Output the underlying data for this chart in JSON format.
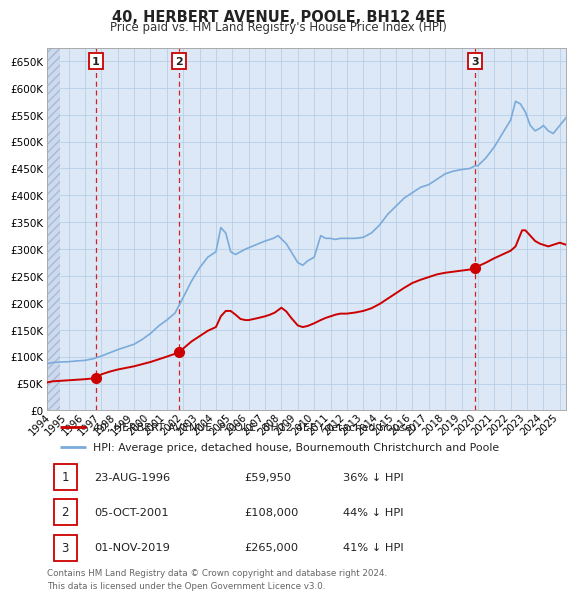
{
  "title": "40, HERBERT AVENUE, POOLE, BH12 4EE",
  "subtitle": "Price paid vs. HM Land Registry's House Price Index (HPI)",
  "yticks": [
    0,
    50000,
    100000,
    150000,
    200000,
    250000,
    300000,
    350000,
    400000,
    450000,
    500000,
    550000,
    600000,
    650000
  ],
  "xlim_start": 1993.7,
  "xlim_end": 2025.4,
  "transactions": [
    {
      "date": 1996.646,
      "price": 59950,
      "label": "1"
    },
    {
      "date": 2001.755,
      "price": 108000,
      "label": "2"
    },
    {
      "date": 2019.836,
      "price": 265000,
      "label": "3"
    }
  ],
  "transaction_details": [
    {
      "num": "1",
      "date_str": "23-AUG-1996",
      "price_str": "£59,950",
      "hpi_str": "36% ↓ HPI"
    },
    {
      "num": "2",
      "date_str": "05-OCT-2001",
      "price_str": "£108,000",
      "hpi_str": "44% ↓ HPI"
    },
    {
      "num": "3",
      "date_str": "01-NOV-2019",
      "price_str": "£265,000",
      "hpi_str": "41% ↓ HPI"
    }
  ],
  "legend_line1": "40, HERBERT AVENUE, POOLE, BH12 4EE (detached house)",
  "legend_line2": "HPI: Average price, detached house, Bournemouth Christchurch and Poole",
  "footer": "Contains HM Land Registry data © Crown copyright and database right 2024.\nThis data is licensed under the Open Government Licence v3.0.",
  "line_color": "#cc0000",
  "hpi_color": "#7aabdb",
  "background_color": "#ffffff",
  "plot_bg_color": "#dce8f5",
  "hatch_region_end": 1994.5,
  "grid_color": "#b8cfe8",
  "vline_color": "#cc0000",
  "hpi_points": [
    [
      1993.7,
      87000
    ],
    [
      1994.0,
      89000
    ],
    [
      1994.5,
      90000
    ],
    [
      1995.0,
      90500
    ],
    [
      1995.5,
      92000
    ],
    [
      1996.0,
      93000
    ],
    [
      1996.5,
      96000
    ],
    [
      1997.0,
      101000
    ],
    [
      1997.5,
      107000
    ],
    [
      1998.0,
      113000
    ],
    [
      1998.5,
      118000
    ],
    [
      1999.0,
      123000
    ],
    [
      1999.5,
      132000
    ],
    [
      2000.0,
      143000
    ],
    [
      2000.5,
      157000
    ],
    [
      2001.0,
      168000
    ],
    [
      2001.5,
      181000
    ],
    [
      2002.0,
      210000
    ],
    [
      2002.5,
      240000
    ],
    [
      2003.0,
      265000
    ],
    [
      2003.5,
      285000
    ],
    [
      2004.0,
      295000
    ],
    [
      2004.3,
      340000
    ],
    [
      2004.6,
      330000
    ],
    [
      2004.9,
      295000
    ],
    [
      2005.2,
      290000
    ],
    [
      2005.5,
      295000
    ],
    [
      2005.8,
      300000
    ],
    [
      2006.2,
      305000
    ],
    [
      2006.6,
      310000
    ],
    [
      2007.0,
      315000
    ],
    [
      2007.5,
      320000
    ],
    [
      2007.8,
      325000
    ],
    [
      2008.3,
      310000
    ],
    [
      2008.7,
      290000
    ],
    [
      2009.0,
      275000
    ],
    [
      2009.3,
      270000
    ],
    [
      2009.6,
      278000
    ],
    [
      2010.0,
      285000
    ],
    [
      2010.4,
      325000
    ],
    [
      2010.7,
      320000
    ],
    [
      2011.0,
      320000
    ],
    [
      2011.3,
      318000
    ],
    [
      2011.6,
      320000
    ],
    [
      2012.0,
      320000
    ],
    [
      2012.5,
      320000
    ],
    [
      2013.0,
      322000
    ],
    [
      2013.5,
      330000
    ],
    [
      2014.0,
      345000
    ],
    [
      2014.5,
      365000
    ],
    [
      2015.0,
      380000
    ],
    [
      2015.5,
      395000
    ],
    [
      2016.0,
      405000
    ],
    [
      2016.5,
      415000
    ],
    [
      2017.0,
      420000
    ],
    [
      2017.5,
      430000
    ],
    [
      2018.0,
      440000
    ],
    [
      2018.5,
      445000
    ],
    [
      2019.0,
      448000
    ],
    [
      2019.5,
      450000
    ],
    [
      2019.836,
      455000
    ],
    [
      2020.0,
      455000
    ],
    [
      2020.5,
      470000
    ],
    [
      2021.0,
      490000
    ],
    [
      2021.5,
      515000
    ],
    [
      2022.0,
      540000
    ],
    [
      2022.3,
      575000
    ],
    [
      2022.6,
      570000
    ],
    [
      2022.9,
      555000
    ],
    [
      2023.2,
      530000
    ],
    [
      2023.5,
      520000
    ],
    [
      2023.8,
      525000
    ],
    [
      2024.0,
      530000
    ],
    [
      2024.3,
      520000
    ],
    [
      2024.6,
      515000
    ],
    [
      2025.0,
      530000
    ],
    [
      2025.4,
      545000
    ]
  ],
  "prop_points": [
    [
      1993.7,
      52000
    ],
    [
      1994.0,
      54000
    ],
    [
      1994.5,
      55000
    ],
    [
      1995.0,
      56000
    ],
    [
      1995.5,
      57000
    ],
    [
      1996.0,
      58000
    ],
    [
      1996.646,
      59950
    ],
    [
      1997.0,
      67000
    ],
    [
      1997.5,
      72000
    ],
    [
      1998.0,
      76000
    ],
    [
      1998.5,
      79000
    ],
    [
      1999.0,
      82000
    ],
    [
      1999.5,
      86000
    ],
    [
      2000.0,
      90000
    ],
    [
      2000.5,
      95000
    ],
    [
      2001.0,
      100000
    ],
    [
      2001.755,
      108000
    ],
    [
      2002.0,
      115000
    ],
    [
      2002.5,
      128000
    ],
    [
      2003.0,
      138000
    ],
    [
      2003.5,
      148000
    ],
    [
      2004.0,
      155000
    ],
    [
      2004.3,
      175000
    ],
    [
      2004.6,
      185000
    ],
    [
      2004.9,
      185000
    ],
    [
      2005.2,
      178000
    ],
    [
      2005.5,
      170000
    ],
    [
      2005.8,
      168000
    ],
    [
      2006.0,
      168000
    ],
    [
      2006.3,
      170000
    ],
    [
      2006.6,
      172000
    ],
    [
      2007.0,
      175000
    ],
    [
      2007.3,
      178000
    ],
    [
      2007.6,
      182000
    ],
    [
      2008.0,
      191000
    ],
    [
      2008.3,
      184000
    ],
    [
      2008.6,
      172000
    ],
    [
      2009.0,
      158000
    ],
    [
      2009.3,
      155000
    ],
    [
      2009.6,
      157000
    ],
    [
      2010.0,
      162000
    ],
    [
      2010.4,
      168000
    ],
    [
      2010.7,
      172000
    ],
    [
      2011.0,
      175000
    ],
    [
      2011.3,
      178000
    ],
    [
      2011.6,
      180000
    ],
    [
      2012.0,
      180000
    ],
    [
      2012.5,
      182000
    ],
    [
      2013.0,
      185000
    ],
    [
      2013.5,
      190000
    ],
    [
      2014.0,
      198000
    ],
    [
      2014.5,
      208000
    ],
    [
      2015.0,
      218000
    ],
    [
      2015.5,
      228000
    ],
    [
      2016.0,
      237000
    ],
    [
      2016.5,
      243000
    ],
    [
      2017.0,
      248000
    ],
    [
      2017.5,
      253000
    ],
    [
      2018.0,
      256000
    ],
    [
      2018.5,
      258000
    ],
    [
      2019.0,
      260000
    ],
    [
      2019.5,
      262000
    ],
    [
      2019.836,
      265000
    ],
    [
      2020.0,
      268000
    ],
    [
      2020.5,
      275000
    ],
    [
      2021.0,
      283000
    ],
    [
      2021.5,
      290000
    ],
    [
      2022.0,
      297000
    ],
    [
      2022.3,
      305000
    ],
    [
      2022.5,
      320000
    ],
    [
      2022.7,
      335000
    ],
    [
      2022.9,
      335000
    ],
    [
      2023.2,
      325000
    ],
    [
      2023.5,
      315000
    ],
    [
      2023.8,
      310000
    ],
    [
      2024.0,
      308000
    ],
    [
      2024.3,
      305000
    ],
    [
      2024.6,
      308000
    ],
    [
      2025.0,
      312000
    ],
    [
      2025.4,
      308000
    ]
  ]
}
